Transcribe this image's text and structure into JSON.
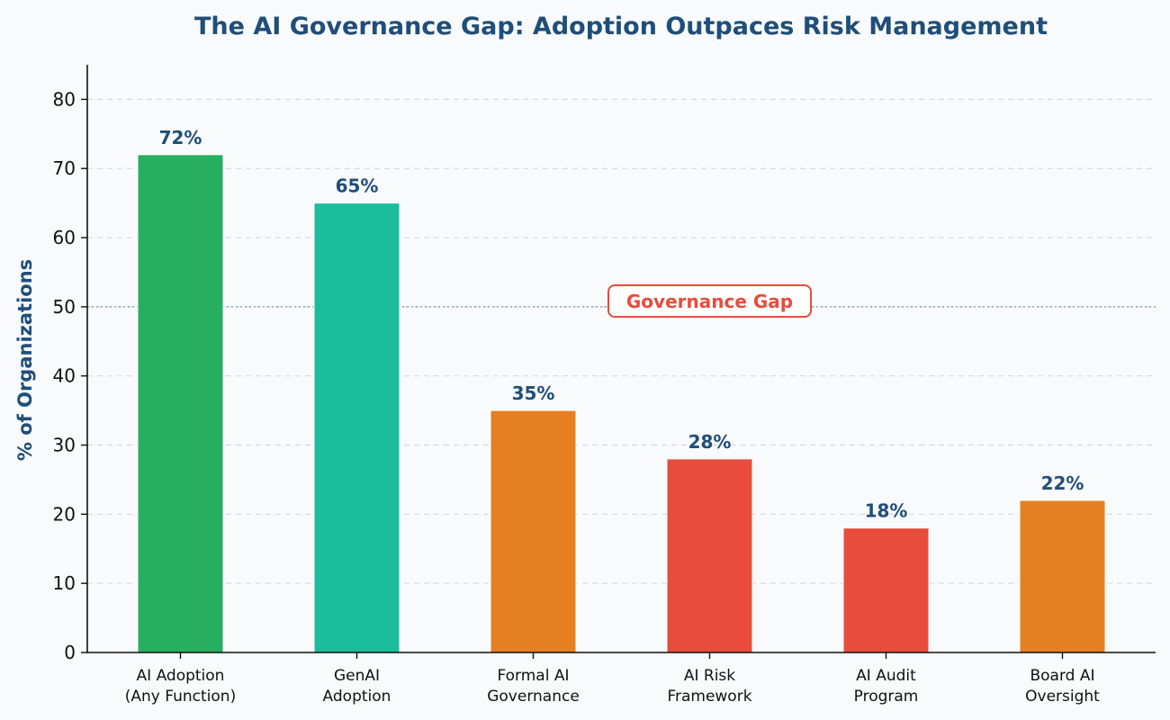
{
  "chart_data": {
    "type": "bar",
    "title": "The AI Governance Gap: Adoption Outpaces Risk Management",
    "xlabel": "",
    "ylabel": "% of Organizations",
    "ylim": [
      0,
      85
    ],
    "yticks": [
      0,
      10,
      20,
      30,
      40,
      50,
      60,
      70,
      80
    ],
    "grid": true,
    "categories": [
      [
        "AI Adoption",
        "(Any Function)"
      ],
      [
        "GenAI",
        "Adoption"
      ],
      [
        "Formal AI",
        "Governance"
      ],
      [
        "AI Risk",
        "Framework"
      ],
      [
        "AI Audit",
        "Program"
      ],
      [
        "Board AI",
        "Oversight"
      ]
    ],
    "values": [
      72,
      65,
      35,
      28,
      18,
      22
    ],
    "data_labels": [
      "72%",
      "65%",
      "35%",
      "28%",
      "18%",
      "22%"
    ],
    "colors": [
      "#27ae60",
      "#1abc9c",
      "#e67e22",
      "#e74c3c",
      "#e74c3c",
      "#e67e22"
    ],
    "reference_line": {
      "y": 50,
      "color": "#95a5a6"
    },
    "annotation": {
      "text": "Governance Gap",
      "color": "#e74c3c"
    }
  }
}
